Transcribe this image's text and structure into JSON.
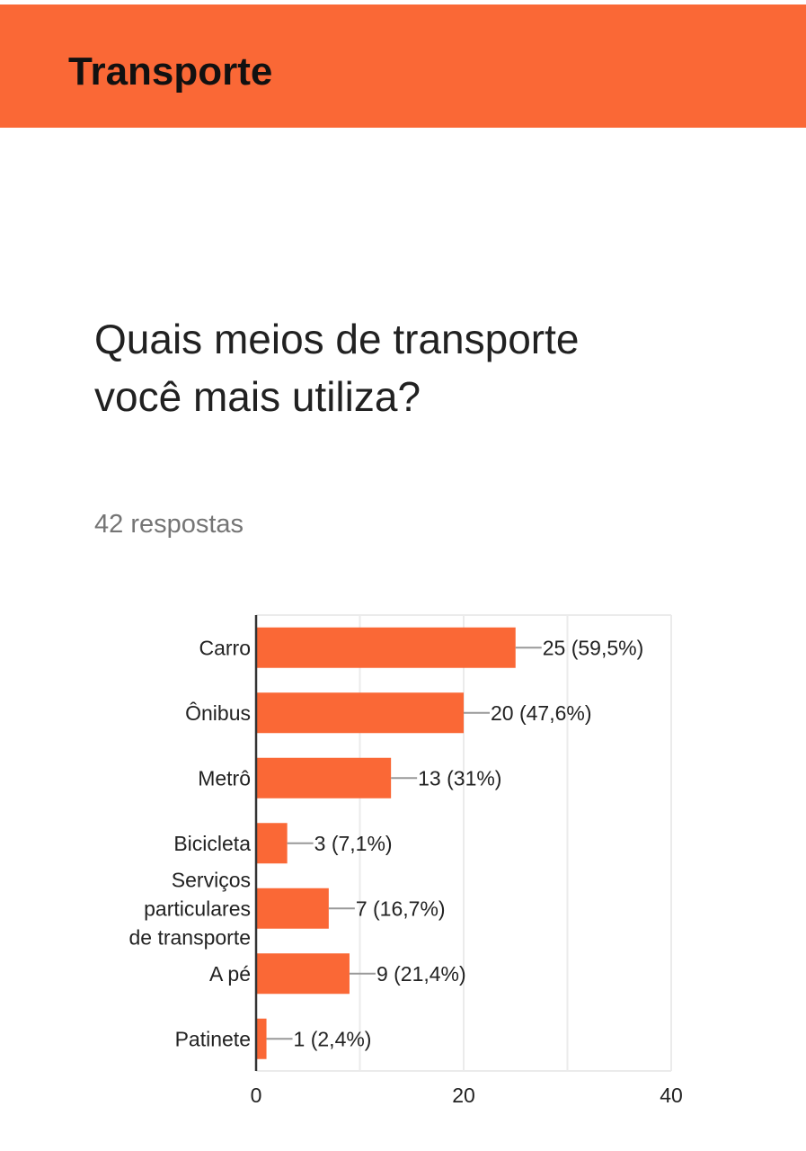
{
  "section": {
    "title": "Transporte"
  },
  "question": {
    "title": "Quais meios de transporte você mais utiliza?",
    "responses": "42 respostas"
  },
  "colors": {
    "accent": "#fa6836",
    "bar": "#fa6836",
    "grid": "#ebebeb",
    "axis": "#333333",
    "leader": "#999999"
  },
  "chart_data": {
    "type": "bar",
    "orientation": "horizontal",
    "categories": [
      "Carro",
      "Ônibus",
      "Metrô",
      "Bicicleta",
      "Serviços particulares de transporte",
      "A pé",
      "Patinete"
    ],
    "values": [
      25,
      20,
      13,
      3,
      7,
      9,
      1
    ],
    "data_labels": [
      "25 (59,5%)",
      "20 (47,6%)",
      "13 (31%)",
      "3 (7,1%)",
      "7 (16,7%)",
      "9 (21,4%)",
      "1 (2,4%)"
    ],
    "xlim": [
      0,
      40
    ],
    "xticks": [
      "0",
      "20",
      "40"
    ],
    "grid": true,
    "legend": "none"
  }
}
